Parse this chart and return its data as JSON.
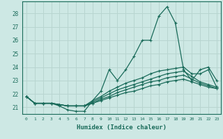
{
  "xlabel": "Humidex (Indice chaleur)",
  "background_color": "#cde8e4",
  "grid_color": "#b8d5d0",
  "line_color": "#1a6b5a",
  "xlim": [
    -0.5,
    23.5
  ],
  "ylim": [
    20.5,
    28.9
  ],
  "yticks": [
    21,
    22,
    23,
    24,
    25,
    26,
    27,
    28
  ],
  "xtick_labels": [
    "0",
    "1",
    "2",
    "3",
    "4",
    "5",
    "6",
    "7",
    "8",
    "9",
    "10",
    "11",
    "12",
    "13",
    "14",
    "15",
    "16",
    "17",
    "18",
    "19",
    "20",
    "21",
    "22",
    "23"
  ],
  "series": [
    [
      21.8,
      21.3,
      21.3,
      21.3,
      21.1,
      20.8,
      20.7,
      20.7,
      21.5,
      22.2,
      23.8,
      23.0,
      23.8,
      24.8,
      26.0,
      26.0,
      27.8,
      28.5,
      27.3,
      23.8,
      23.0,
      23.8,
      24.0,
      23.0
    ],
    [
      21.8,
      21.3,
      21.3,
      21.3,
      21.2,
      21.1,
      21.1,
      21.1,
      21.5,
      21.8,
      22.2,
      22.5,
      22.8,
      23.0,
      23.2,
      23.5,
      23.7,
      23.8,
      23.9,
      24.0,
      23.5,
      23.5,
      23.8,
      22.5
    ],
    [
      21.8,
      21.3,
      21.3,
      21.3,
      21.2,
      21.1,
      21.1,
      21.1,
      21.4,
      21.7,
      22.0,
      22.3,
      22.5,
      22.7,
      22.9,
      23.1,
      23.3,
      23.5,
      23.6,
      23.7,
      23.3,
      22.9,
      22.7,
      22.5
    ],
    [
      21.8,
      21.3,
      21.3,
      21.3,
      21.2,
      21.1,
      21.1,
      21.1,
      21.3,
      21.6,
      21.8,
      22.1,
      22.3,
      22.5,
      22.7,
      22.9,
      23.0,
      23.2,
      23.3,
      23.4,
      23.1,
      22.8,
      22.6,
      22.4
    ],
    [
      21.8,
      21.3,
      21.3,
      21.3,
      21.2,
      21.1,
      21.1,
      21.1,
      21.3,
      21.5,
      21.7,
      21.9,
      22.1,
      22.2,
      22.4,
      22.6,
      22.7,
      22.9,
      23.0,
      23.1,
      22.9,
      22.7,
      22.5,
      22.4
    ]
  ]
}
